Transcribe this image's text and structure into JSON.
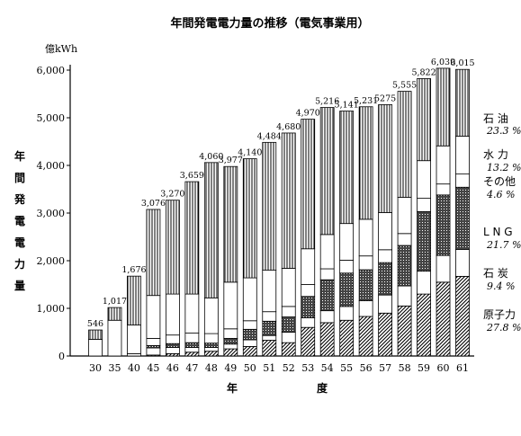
{
  "chart_data": {
    "type": "bar",
    "stacked": true,
    "title": "年間発電電力量の推移（電気事業用）",
    "unit_label": "億kWh",
    "ylabel_chars": [
      "年",
      "間",
      "発",
      "電",
      "電",
      "力",
      "量"
    ],
    "xlabel_chars": [
      "年",
      "度"
    ],
    "ylim": [
      0,
      6000
    ],
    "yticks": [
      0,
      1000,
      2000,
      3000,
      4000,
      5000,
      6000
    ],
    "ytick_labels": [
      "0",
      "1,000",
      "2,000",
      "3,000",
      "4,000",
      "5,000",
      "6,000"
    ],
    "categories": [
      "30",
      "35",
      "40",
      "45",
      "46",
      "47",
      "48",
      "49",
      "50",
      "51",
      "52",
      "53",
      "54",
      "55",
      "56",
      "57",
      "58",
      "59",
      "60",
      "61"
    ],
    "totals": [
      546,
      1017,
      1676,
      3076,
      3270,
      3659,
      4060,
      3977,
      4140,
      4484,
      4680,
      4970,
      5216,
      5141,
      5231,
      5275,
      5555,
      5822,
      6039,
      6015
    ],
    "total_labels": [
      "546",
      "1,017",
      "1,676",
      "3,076",
      "3,270",
      "3,659",
      "4,060",
      "3,977",
      "4,140",
      "4,484",
      "4,680",
      "4,970",
      "5,216",
      "5,141",
      "5,231",
      "5275",
      "5,555",
      "5,822",
      "6,039",
      "6,015"
    ],
    "series": [
      {
        "key": "nuclear",
        "name": "原子力",
        "share_label": "27.8 %",
        "pattern": "diag",
        "values": [
          0,
          0,
          0,
          20,
          50,
          80,
          100,
          150,
          200,
          330,
          280,
          600,
          700,
          750,
          830,
          900,
          1050,
          1300,
          1550,
          1672
        ]
      },
      {
        "key": "coal",
        "name": "石 炭",
        "share_label": "9.4 %",
        "pattern": "white",
        "values": [
          0,
          0,
          0,
          150,
          130,
          100,
          80,
          100,
          140,
          100,
          220,
          200,
          250,
          290,
          330,
          380,
          420,
          480,
          560,
          565
        ]
      },
      {
        "key": "lng",
        "name": "L N G",
        "share_label": "21.7 %",
        "pattern": "cross",
        "values": [
          0,
          0,
          0,
          50,
          80,
          100,
          90,
          120,
          220,
          300,
          320,
          450,
          650,
          700,
          650,
          680,
          850,
          1250,
          1270,
          1305
        ]
      },
      {
        "key": "other",
        "name": "その他",
        "share_label": "4.6 %",
        "pattern": "white",
        "values": [
          0,
          0,
          50,
          150,
          180,
          200,
          200,
          200,
          180,
          200,
          220,
          250,
          230,
          270,
          290,
          270,
          250,
          280,
          230,
          277
        ]
      },
      {
        "key": "hydro",
        "name": "水 力",
        "share_label": "13.2 %",
        "pattern": "white",
        "values": [
          350,
          750,
          600,
          900,
          860,
          820,
          750,
          980,
          900,
          870,
          800,
          750,
          720,
          770,
          770,
          780,
          760,
          790,
          800,
          794
        ]
      },
      {
        "key": "oil",
        "name": "石 油",
        "share_label": "23.3 %",
        "pattern": "vert",
        "values": [
          196,
          267,
          1026,
          1806,
          1970,
          2359,
          2840,
          2427,
          2500,
          2684,
          2840,
          2720,
          2666,
          2361,
          2361,
          2265,
          2225,
          1722,
          1629,
          1402
        ]
      }
    ]
  }
}
